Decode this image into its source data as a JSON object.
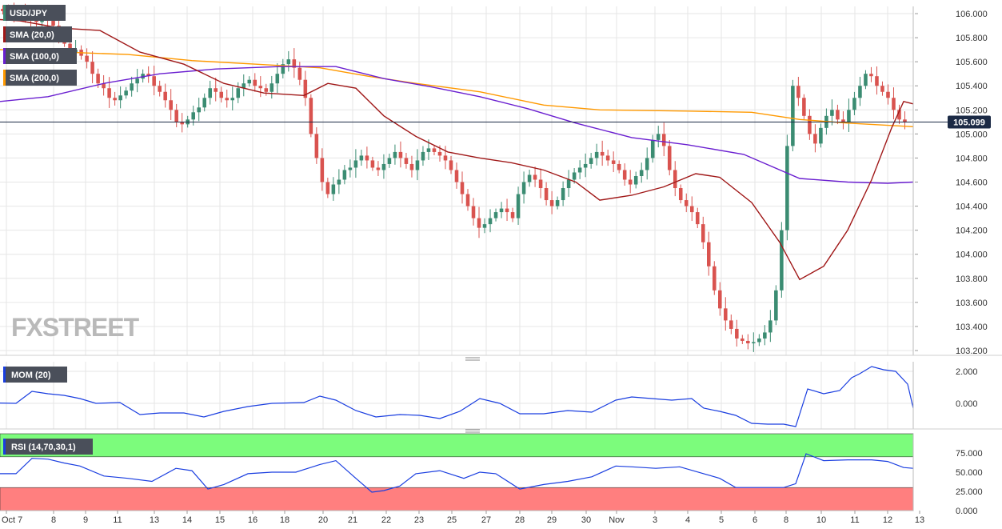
{
  "colors": {
    "up": "#3b8c72",
    "down": "#d9534f",
    "sma20": "#a01818",
    "sma100": "#6a1fd0",
    "sma200": "#ff9900",
    "mom": "#1a3ee0",
    "rsi": "#1a3ee0",
    "overbought": "#7cfc7c",
    "oversold": "#ff7f7f",
    "grid": "#e6e6e6",
    "label_bg": "#4a4f5a",
    "price_tag_bg": "#1b2a45"
  },
  "legend": {
    "symbol": "USD/JPY",
    "sma20": "SMA (20,0)",
    "sma100": "SMA (100,0)",
    "sma200": "SMA (200,0)",
    "mom": "MOM (20)",
    "rsi": "RSI (14,70,30,1)"
  },
  "watermark": "FXSTREET",
  "chart_data": [
    {
      "type": "candlestick",
      "title": "USD/JPY",
      "current_price": 105.099,
      "current_price_label": "105.099",
      "ylim": [
        103.16,
        106.06
      ],
      "y_ticks": [
        "106.000",
        "105.800",
        "105.600",
        "105.400",
        "105.200",
        "105.000",
        "104.800",
        "104.600",
        "104.400",
        "104.200",
        "104.000",
        "103.800",
        "103.600",
        "103.400",
        "103.200"
      ],
      "x_ticks": [
        "Oct 7",
        "8",
        "9",
        "11",
        "13",
        "14",
        "15",
        "16",
        "18",
        "20",
        "21",
        "22",
        "23",
        "25",
        "27",
        "28",
        "29",
        "30",
        "Nov",
        "3",
        "4",
        "5",
        "6",
        "8",
        "10",
        "11",
        "12",
        "13"
      ],
      "close_series": [
        106.02,
        106.01,
        106.0,
        106.02,
        105.98,
        105.95,
        105.93,
        105.98,
        105.94,
        105.9,
        105.82,
        105.75,
        105.68,
        105.7,
        105.65,
        105.6,
        105.5,
        105.42,
        105.38,
        105.3,
        105.28,
        105.32,
        105.36,
        105.42,
        105.46,
        105.5,
        105.48,
        105.4,
        105.35,
        105.28,
        105.2,
        105.1,
        105.08,
        105.12,
        105.18,
        105.22,
        105.3,
        105.38,
        105.35,
        105.3,
        105.28,
        105.3,
        105.38,
        105.42,
        105.45,
        105.4,
        105.38,
        105.35,
        105.42,
        105.5,
        105.58,
        105.62,
        105.55,
        105.45,
        105.3,
        105.0,
        104.8,
        104.6,
        104.5,
        104.58,
        104.62,
        104.7,
        104.72,
        104.78,
        104.82,
        104.78,
        104.72,
        104.7,
        104.75,
        104.8,
        104.85,
        104.8,
        104.75,
        104.7,
        104.78,
        104.85,
        104.88,
        104.85,
        104.82,
        104.78,
        104.7,
        104.6,
        104.5,
        104.4,
        104.3,
        104.22,
        104.25,
        104.3,
        104.35,
        104.38,
        104.35,
        104.3,
        104.5,
        104.6,
        104.66,
        104.62,
        104.55,
        104.45,
        104.4,
        104.45,
        104.55,
        104.62,
        104.68,
        104.72,
        104.75,
        104.8,
        104.85,
        104.82,
        104.78,
        104.75,
        104.7,
        104.62,
        104.58,
        104.65,
        104.7,
        104.8,
        104.95,
        105.0,
        104.9,
        104.7,
        104.55,
        104.45,
        104.4,
        104.35,
        104.25,
        104.1,
        103.9,
        103.7,
        103.55,
        103.45,
        103.38,
        103.3,
        103.28,
        103.26,
        103.27,
        103.3,
        103.35,
        103.45,
        103.7,
        104.2,
        104.9,
        105.4,
        105.3,
        105.15,
        105.0,
        104.92,
        105.05,
        105.15,
        105.2,
        105.12,
        105.1,
        105.2,
        105.3,
        105.4,
        105.5,
        105.48,
        105.4,
        105.35,
        105.3,
        105.2,
        105.12,
        105.1
      ],
      "sma20": [
        [
          0,
          105.95
        ],
        [
          25,
          105.94
        ],
        [
          75,
          105.88
        ],
        [
          125,
          105.86
        ],
        [
          175,
          105.68
        ],
        [
          230,
          105.58
        ],
        [
          280,
          105.42
        ],
        [
          330,
          105.34
        ],
        [
          380,
          105.32
        ],
        [
          410,
          105.42
        ],
        [
          445,
          105.38
        ],
        [
          480,
          105.15
        ],
        [
          520,
          104.98
        ],
        [
          560,
          104.85
        ],
        [
          600,
          104.8
        ],
        [
          640,
          104.76
        ],
        [
          680,
          104.7
        ],
        [
          720,
          104.6
        ],
        [
          750,
          104.45
        ],
        [
          790,
          104.49
        ],
        [
          830,
          104.56
        ],
        [
          870,
          104.67
        ],
        [
          900,
          104.64
        ],
        [
          940,
          104.43
        ],
        [
          975,
          104.1
        ],
        [
          1000,
          103.79
        ],
        [
          1030,
          103.9
        ],
        [
          1060,
          104.2
        ],
        [
          1090,
          104.62
        ],
        [
          1115,
          105.05
        ],
        [
          1130,
          105.27
        ],
        [
          1142,
          105.25
        ]
      ],
      "sma100": [
        [
          0,
          105.27
        ],
        [
          60,
          105.31
        ],
        [
          130,
          105.42
        ],
        [
          200,
          105.5
        ],
        [
          270,
          105.54
        ],
        [
          350,
          105.56
        ],
        [
          420,
          105.56
        ],
        [
          480,
          105.46
        ],
        [
          540,
          105.39
        ],
        [
          600,
          105.31
        ],
        [
          660,
          105.21
        ],
        [
          720,
          105.09
        ],
        [
          790,
          104.97
        ],
        [
          860,
          104.91
        ],
        [
          930,
          104.83
        ],
        [
          1000,
          104.63
        ],
        [
          1060,
          104.6
        ],
        [
          1110,
          104.59
        ],
        [
          1142,
          104.6
        ]
      ],
      "sma200": [
        [
          0,
          105.7
        ],
        [
          80,
          105.68
        ],
        [
          160,
          105.66
        ],
        [
          240,
          105.61
        ],
        [
          320,
          105.58
        ],
        [
          400,
          105.55
        ],
        [
          460,
          105.48
        ],
        [
          520,
          105.42
        ],
        [
          600,
          105.35
        ],
        [
          680,
          105.24
        ],
        [
          750,
          105.2
        ],
        [
          860,
          105.19
        ],
        [
          940,
          105.18
        ],
        [
          1000,
          105.12
        ],
        [
          1060,
          105.09
        ],
        [
          1142,
          105.06
        ]
      ]
    },
    {
      "type": "line",
      "title": "MOM (20)",
      "ylim": [
        -1.6,
        2.6
      ],
      "y_ticks": [
        "2.000",
        "0.000"
      ],
      "points": [
        [
          0,
          0.02
        ],
        [
          20,
          0.0
        ],
        [
          40,
          0.75
        ],
        [
          60,
          0.6
        ],
        [
          80,
          0.5
        ],
        [
          100,
          0.3
        ],
        [
          120,
          0.0
        ],
        [
          150,
          0.05
        ],
        [
          175,
          -0.7
        ],
        [
          200,
          -0.6
        ],
        [
          230,
          -0.6
        ],
        [
          255,
          -0.85
        ],
        [
          280,
          -0.5
        ],
        [
          310,
          -0.2
        ],
        [
          340,
          0.0
        ],
        [
          380,
          0.05
        ],
        [
          400,
          0.45
        ],
        [
          420,
          0.2
        ],
        [
          445,
          -0.45
        ],
        [
          470,
          -0.85
        ],
        [
          500,
          -0.7
        ],
        [
          525,
          -0.75
        ],
        [
          550,
          -0.95
        ],
        [
          575,
          -0.5
        ],
        [
          600,
          0.3
        ],
        [
          625,
          0.0
        ],
        [
          650,
          -0.65
        ],
        [
          680,
          -0.65
        ],
        [
          710,
          -0.45
        ],
        [
          740,
          -0.55
        ],
        [
          770,
          0.2
        ],
        [
          790,
          0.4
        ],
        [
          815,
          0.3
        ],
        [
          840,
          0.2
        ],
        [
          865,
          0.3
        ],
        [
          880,
          -0.3
        ],
        [
          900,
          -0.5
        ],
        [
          920,
          -0.75
        ],
        [
          940,
          -1.25
        ],
        [
          960,
          -1.3
        ],
        [
          980,
          -1.3
        ],
        [
          995,
          -1.45
        ],
        [
          1010,
          0.9
        ],
        [
          1030,
          0.6
        ],
        [
          1050,
          0.8
        ],
        [
          1065,
          1.6
        ],
        [
          1075,
          1.85
        ],
        [
          1090,
          2.3
        ],
        [
          1105,
          2.1
        ],
        [
          1120,
          2.0
        ],
        [
          1135,
          1.2
        ],
        [
          1142,
          -0.3
        ]
      ]
    },
    {
      "type": "line",
      "title": "RSI (14,70,30,1)",
      "ylim": [
        0,
        100
      ],
      "overbought": 70,
      "oversold": 30,
      "y_ticks": [
        "75.000",
        "50.000",
        "25.000",
        "0.000"
      ],
      "points": [
        [
          0,
          48
        ],
        [
          20,
          48
        ],
        [
          40,
          68
        ],
        [
          60,
          67
        ],
        [
          80,
          62
        ],
        [
          100,
          58
        ],
        [
          130,
          45
        ],
        [
          160,
          42
        ],
        [
          190,
          38
        ],
        [
          220,
          55
        ],
        [
          240,
          52
        ],
        [
          260,
          28
        ],
        [
          280,
          34
        ],
        [
          310,
          48
        ],
        [
          340,
          50
        ],
        [
          370,
          50
        ],
        [
          400,
          60
        ],
        [
          420,
          65
        ],
        [
          445,
          42
        ],
        [
          465,
          24
        ],
        [
          480,
          26
        ],
        [
          500,
          32
        ],
        [
          520,
          48
        ],
        [
          550,
          52
        ],
        [
          580,
          42
        ],
        [
          600,
          50
        ],
        [
          620,
          48
        ],
        [
          650,
          28
        ],
        [
          680,
          34
        ],
        [
          710,
          38
        ],
        [
          740,
          44
        ],
        [
          770,
          58
        ],
        [
          790,
          57
        ],
        [
          820,
          55
        ],
        [
          850,
          57
        ],
        [
          880,
          48
        ],
        [
          900,
          42
        ],
        [
          920,
          30
        ],
        [
          940,
          30
        ],
        [
          960,
          30
        ],
        [
          980,
          30
        ],
        [
          995,
          35
        ],
        [
          1008,
          74
        ],
        [
          1030,
          65
        ],
        [
          1060,
          66
        ],
        [
          1090,
          66
        ],
        [
          1110,
          64
        ],
        [
          1130,
          56
        ],
        [
          1142,
          55
        ]
      ]
    }
  ]
}
